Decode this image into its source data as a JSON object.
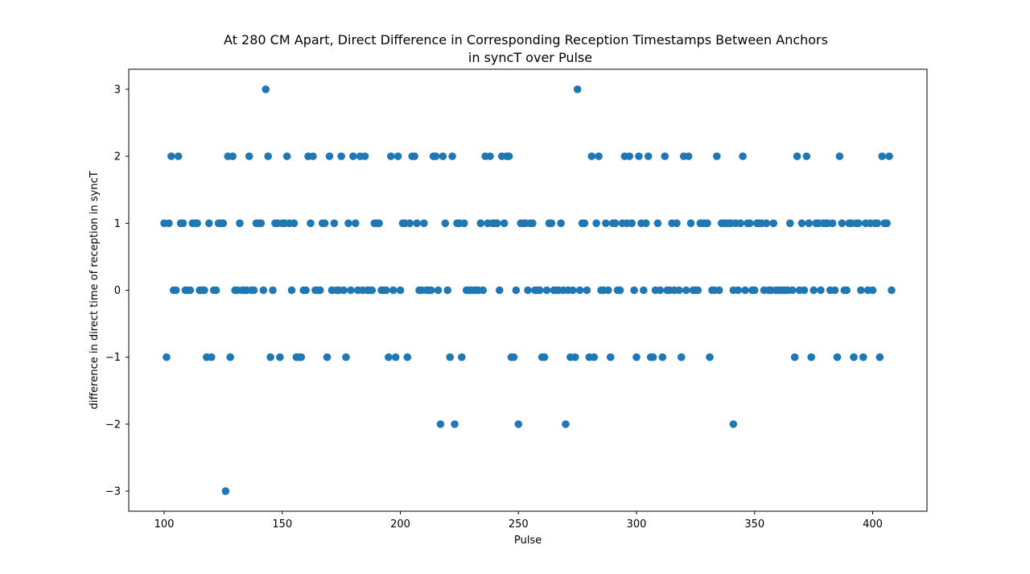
{
  "chart_data": {
    "type": "scatter",
    "title_lines": [
      "At 280 CM Apart, Direct Difference in Corresponding Reception Timestamps Between Anchors",
      "in syncT over Pulse"
    ],
    "xlabel": "Pulse",
    "ylabel": "difference in direct time of reception in syncT",
    "xlim": [
      85,
      423
    ],
    "ylim": [
      -3.3,
      3.3
    ],
    "x_ticks": [
      100,
      150,
      200,
      250,
      300,
      350,
      400
    ],
    "y_ticks": [
      -3,
      -2,
      -1,
      0,
      1,
      2,
      3
    ],
    "y_tick_labels": [
      "−3",
      "−2",
      "−1",
      "0",
      "1",
      "2",
      "3"
    ],
    "grid": false,
    "marker_color": "#1f77b4",
    "series": [
      {
        "points": [
          [
            100,
            1
          ],
          [
            101,
            -1
          ],
          [
            102,
            1
          ],
          [
            103,
            2
          ],
          [
            104,
            0
          ],
          [
            105,
            0
          ],
          [
            106,
            2
          ],
          [
            107,
            1
          ],
          [
            108,
            1
          ],
          [
            109,
            0
          ],
          [
            110,
            0
          ],
          [
            111,
            0
          ],
          [
            112,
            1
          ],
          [
            113,
            1
          ],
          [
            114,
            1
          ],
          [
            115,
            0
          ],
          [
            116,
            0
          ],
          [
            117,
            0
          ],
          [
            118,
            -1
          ],
          [
            119,
            1
          ],
          [
            120,
            -1
          ],
          [
            121,
            0
          ],
          [
            122,
            0
          ],
          [
            123,
            1
          ],
          [
            124,
            1
          ],
          [
            125,
            1
          ],
          [
            126,
            -3
          ],
          [
            127,
            2
          ],
          [
            128,
            -1
          ],
          [
            129,
            2
          ],
          [
            130,
            0
          ],
          [
            131,
            0
          ],
          [
            132,
            1
          ],
          [
            133,
            0
          ],
          [
            134,
            0
          ],
          [
            135,
            0
          ],
          [
            136,
            2
          ],
          [
            137,
            0
          ],
          [
            138,
            0
          ],
          [
            139,
            1
          ],
          [
            140,
            1
          ],
          [
            141,
            1
          ],
          [
            142,
            0
          ],
          [
            143,
            3
          ],
          [
            144,
            2
          ],
          [
            145,
            -1
          ],
          [
            146,
            0
          ],
          [
            147,
            1
          ],
          [
            148,
            1
          ],
          [
            149,
            -1
          ],
          [
            150,
            1
          ],
          [
            151,
            1
          ],
          [
            152,
            2
          ],
          [
            153,
            1
          ],
          [
            154,
            0
          ],
          [
            155,
            1
          ],
          [
            156,
            -1
          ],
          [
            157,
            -1
          ],
          [
            158,
            -1
          ],
          [
            159,
            0
          ],
          [
            160,
            0
          ],
          [
            161,
            2
          ],
          [
            162,
            1
          ],
          [
            163,
            2
          ],
          [
            164,
            0
          ],
          [
            165,
            0
          ],
          [
            166,
            0
          ],
          [
            167,
            1
          ],
          [
            168,
            1
          ],
          [
            169,
            -1
          ],
          [
            170,
            2
          ],
          [
            171,
            0
          ],
          [
            172,
            1
          ],
          [
            173,
            0
          ],
          [
            174,
            0
          ],
          [
            175,
            2
          ],
          [
            176,
            0
          ],
          [
            177,
            -1
          ],
          [
            178,
            1
          ],
          [
            179,
            0
          ],
          [
            180,
            2
          ],
          [
            181,
            1
          ],
          [
            182,
            0
          ],
          [
            183,
            2
          ],
          [
            184,
            0
          ],
          [
            185,
            2
          ],
          [
            186,
            0
          ],
          [
            187,
            0
          ],
          [
            188,
            0
          ],
          [
            189,
            1
          ],
          [
            190,
            1
          ],
          [
            191,
            1
          ],
          [
            192,
            0
          ],
          [
            193,
            0
          ],
          [
            194,
            0
          ],
          [
            195,
            -1
          ],
          [
            196,
            2
          ],
          [
            197,
            0
          ],
          [
            198,
            -1
          ],
          [
            199,
            2
          ],
          [
            200,
            0
          ],
          [
            201,
            1
          ],
          [
            202,
            1
          ],
          [
            203,
            -1
          ],
          [
            204,
            1
          ],
          [
            205,
            2
          ],
          [
            206,
            2
          ],
          [
            207,
            1
          ],
          [
            208,
            0
          ],
          [
            209,
            0
          ],
          [
            210,
            1
          ],
          [
            211,
            0
          ],
          [
            212,
            0
          ],
          [
            213,
            0
          ],
          [
            214,
            2
          ],
          [
            215,
            2
          ],
          [
            216,
            0
          ],
          [
            217,
            -2
          ],
          [
            218,
            2
          ],
          [
            219,
            1
          ],
          [
            220,
            0
          ],
          [
            221,
            -1
          ],
          [
            222,
            2
          ],
          [
            223,
            -2
          ],
          [
            224,
            1
          ],
          [
            225,
            1
          ],
          [
            226,
            -1
          ],
          [
            227,
            1
          ],
          [
            228,
            0
          ],
          [
            229,
            0
          ],
          [
            230,
            0
          ],
          [
            231,
            0
          ],
          [
            232,
            0
          ],
          [
            233,
            0
          ],
          [
            234,
            1
          ],
          [
            235,
            0
          ],
          [
            236,
            2
          ],
          [
            237,
            1
          ],
          [
            238,
            2
          ],
          [
            239,
            1
          ],
          [
            240,
            1
          ],
          [
            241,
            1
          ],
          [
            242,
            0
          ],
          [
            243,
            2
          ],
          [
            244,
            1
          ],
          [
            245,
            2
          ],
          [
            246,
            2
          ],
          [
            247,
            -1
          ],
          [
            248,
            -1
          ],
          [
            249,
            0
          ],
          [
            250,
            -2
          ],
          [
            251,
            1
          ],
          [
            252,
            1
          ],
          [
            253,
            1
          ],
          [
            254,
            0
          ],
          [
            255,
            1
          ],
          [
            256,
            1
          ],
          [
            257,
            0
          ],
          [
            258,
            0
          ],
          [
            259,
            0
          ],
          [
            260,
            -1
          ],
          [
            261,
            -1
          ],
          [
            262,
            0
          ],
          [
            263,
            1
          ],
          [
            264,
            1
          ],
          [
            265,
            0
          ],
          [
            266,
            0
          ],
          [
            267,
            0
          ],
          [
            268,
            1
          ],
          [
            269,
            0
          ],
          [
            270,
            -2
          ],
          [
            271,
            0
          ],
          [
            272,
            -1
          ],
          [
            273,
            0
          ],
          [
            274,
            -1
          ],
          [
            275,
            3
          ],
          [
            276,
            0
          ],
          [
            277,
            1
          ],
          [
            278,
            1
          ],
          [
            279,
            0
          ],
          [
            280,
            -1
          ],
          [
            281,
            2
          ],
          [
            282,
            -1
          ],
          [
            283,
            1
          ],
          [
            284,
            2
          ],
          [
            285,
            0
          ],
          [
            286,
            0
          ],
          [
            287,
            1
          ],
          [
            288,
            0
          ],
          [
            289,
            -1
          ],
          [
            290,
            1
          ],
          [
            291,
            1
          ],
          [
            292,
            0
          ],
          [
            293,
            0
          ],
          [
            294,
            1
          ],
          [
            295,
            2
          ],
          [
            296,
            1
          ],
          [
            297,
            2
          ],
          [
            298,
            1
          ],
          [
            299,
            0
          ],
          [
            300,
            -1
          ],
          [
            301,
            2
          ],
          [
            302,
            1
          ],
          [
            303,
            0
          ],
          [
            304,
            1
          ],
          [
            305,
            2
          ],
          [
            306,
            -1
          ],
          [
            307,
            -1
          ],
          [
            308,
            0
          ],
          [
            309,
            1
          ],
          [
            310,
            0
          ],
          [
            311,
            -1
          ],
          [
            312,
            2
          ],
          [
            313,
            0
          ],
          [
            314,
            0
          ],
          [
            315,
            1
          ],
          [
            316,
            0
          ],
          [
            317,
            1
          ],
          [
            318,
            0
          ],
          [
            319,
            -1
          ],
          [
            320,
            2
          ],
          [
            321,
            0
          ],
          [
            322,
            2
          ],
          [
            323,
            1
          ],
          [
            324,
            0
          ],
          [
            325,
            0
          ],
          [
            326,
            0
          ],
          [
            327,
            1
          ],
          [
            328,
            1
          ],
          [
            329,
            1
          ],
          [
            330,
            1
          ],
          [
            331,
            -1
          ],
          [
            332,
            0
          ],
          [
            333,
            0
          ],
          [
            334,
            2
          ],
          [
            335,
            0
          ],
          [
            336,
            1
          ],
          [
            337,
            1
          ],
          [
            338,
            1
          ],
          [
            339,
            1
          ],
          [
            340,
            1
          ],
          [
            341,
            0
          ],
          [
            341,
            -2
          ],
          [
            342,
            1
          ],
          [
            343,
            0
          ],
          [
            344,
            1
          ],
          [
            345,
            2
          ],
          [
            346,
            0
          ],
          [
            347,
            1
          ],
          [
            348,
            1
          ],
          [
            349,
            0
          ],
          [
            350,
            0
          ],
          [
            351,
            1
          ],
          [
            352,
            1
          ],
          [
            353,
            1
          ],
          [
            354,
            0
          ],
          [
            355,
            1
          ],
          [
            356,
            0
          ],
          [
            357,
            0
          ],
          [
            358,
            1
          ],
          [
            359,
            0
          ],
          [
            360,
            0
          ],
          [
            361,
            0
          ],
          [
            362,
            0
          ],
          [
            363,
            0
          ],
          [
            364,
            0
          ],
          [
            365,
            1
          ],
          [
            366,
            0
          ],
          [
            367,
            -1
          ],
          [
            368,
            2
          ],
          [
            369,
            0
          ],
          [
            370,
            1
          ],
          [
            371,
            0
          ],
          [
            372,
            2
          ],
          [
            373,
            1
          ],
          [
            374,
            -1
          ],
          [
            375,
            0
          ],
          [
            376,
            1
          ],
          [
            377,
            1
          ],
          [
            378,
            0
          ],
          [
            379,
            1
          ],
          [
            380,
            1
          ],
          [
            381,
            1
          ],
          [
            382,
            0
          ],
          [
            383,
            1
          ],
          [
            384,
            0
          ],
          [
            385,
            -1
          ],
          [
            386,
            2
          ],
          [
            387,
            1
          ],
          [
            388,
            0
          ],
          [
            389,
            0
          ],
          [
            390,
            1
          ],
          [
            391,
            1
          ],
          [
            392,
            -1
          ],
          [
            393,
            1
          ],
          [
            394,
            1
          ],
          [
            395,
            0
          ],
          [
            396,
            -1
          ],
          [
            397,
            1
          ],
          [
            398,
            0
          ],
          [
            399,
            1
          ],
          [
            400,
            0
          ],
          [
            401,
            1
          ],
          [
            402,
            1
          ],
          [
            403,
            -1
          ],
          [
            404,
            2
          ],
          [
            405,
            1
          ],
          [
            406,
            1
          ],
          [
            407,
            2
          ],
          [
            408,
            0
          ]
        ]
      }
    ]
  }
}
